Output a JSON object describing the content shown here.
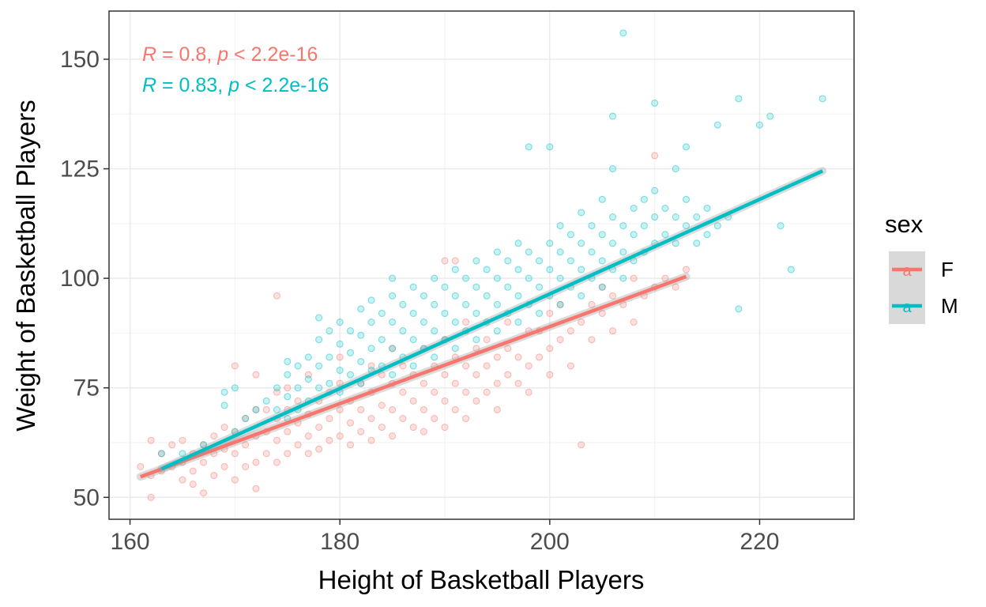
{
  "chart_data": {
    "type": "scatter",
    "title": "",
    "xlabel": "Height of Basketball Players",
    "ylabel": "Weight of Basketball Players",
    "xlim": [
      158,
      229
    ],
    "ylim": [
      45,
      161
    ],
    "xticks": [
      160,
      180,
      200,
      220
    ],
    "yticks": [
      50,
      75,
      100,
      125,
      150
    ],
    "grid": true,
    "legend": {
      "title": "sex",
      "placement": "right",
      "key_glyph": "a",
      "entries": [
        {
          "label": "F",
          "color": "#F8766D"
        },
        {
          "label": "M",
          "color": "#00BFC4"
        }
      ]
    },
    "annotations": [
      {
        "r_symbol": "R",
        "r_text": " = 0.8, ",
        "p_symbol": "p",
        "p_text": " < 2.2e-16",
        "color": "#F8766D"
      },
      {
        "r_symbol": "R",
        "r_text": " = 0.83, ",
        "p_symbol": "p",
        "p_text": " < 2.2e-16",
        "color": "#00BFC4"
      }
    ],
    "series": [
      {
        "name": "F",
        "color": "#F8766D",
        "trend": {
          "x": [
            161,
            213
          ],
          "y": [
            54.7,
            100.4
          ]
        },
        "points": [
          [
            161,
            57
          ],
          [
            162,
            50
          ],
          [
            162,
            55
          ],
          [
            162,
            63
          ],
          [
            163,
            56
          ],
          [
            163,
            60
          ],
          [
            164,
            57
          ],
          [
            164,
            62
          ],
          [
            165,
            54
          ],
          [
            165,
            58
          ],
          [
            165,
            63
          ],
          [
            166,
            53
          ],
          [
            166,
            56
          ],
          [
            166,
            60
          ],
          [
            167,
            51
          ],
          [
            167,
            58
          ],
          [
            167,
            62
          ],
          [
            168,
            55
          ],
          [
            168,
            60
          ],
          [
            168,
            64
          ],
          [
            169,
            57
          ],
          [
            169,
            61
          ],
          [
            169,
            66
          ],
          [
            170,
            54
          ],
          [
            170,
            60
          ],
          [
            170,
            65
          ],
          [
            170,
            80
          ],
          [
            171,
            57
          ],
          [
            171,
            62
          ],
          [
            171,
            68
          ],
          [
            172,
            52
          ],
          [
            172,
            58
          ],
          [
            172,
            64
          ],
          [
            172,
            70
          ],
          [
            172,
            78
          ],
          [
            173,
            60
          ],
          [
            173,
            65
          ],
          [
            173,
            70
          ],
          [
            174,
            58
          ],
          [
            174,
            63
          ],
          [
            174,
            68
          ],
          [
            174,
            74
          ],
          [
            174,
            96
          ],
          [
            175,
            60
          ],
          [
            175,
            65
          ],
          [
            175,
            70
          ],
          [
            175,
            75
          ],
          [
            176,
            62
          ],
          [
            176,
            67
          ],
          [
            176,
            72
          ],
          [
            177,
            60
          ],
          [
            177,
            64
          ],
          [
            177,
            69
          ],
          [
            177,
            78
          ],
          [
            178,
            61
          ],
          [
            178,
            66
          ],
          [
            178,
            72
          ],
          [
            179,
            63
          ],
          [
            179,
            68
          ],
          [
            179,
            74
          ],
          [
            180,
            64
          ],
          [
            180,
            70
          ],
          [
            180,
            76
          ],
          [
            180,
            82
          ],
          [
            181,
            62
          ],
          [
            181,
            67
          ],
          [
            181,
            72
          ],
          [
            182,
            65
          ],
          [
            182,
            70
          ],
          [
            182,
            76
          ],
          [
            183,
            63
          ],
          [
            183,
            68
          ],
          [
            183,
            74
          ],
          [
            183,
            80
          ],
          [
            184,
            66
          ],
          [
            184,
            71
          ],
          [
            184,
            78
          ],
          [
            185,
            64
          ],
          [
            185,
            70
          ],
          [
            185,
            76
          ],
          [
            185,
            84
          ],
          [
            186,
            68
          ],
          [
            186,
            74
          ],
          [
            186,
            80
          ],
          [
            187,
            66
          ],
          [
            187,
            72
          ],
          [
            187,
            78
          ],
          [
            188,
            65
          ],
          [
            188,
            70
          ],
          [
            188,
            76
          ],
          [
            188,
            84
          ],
          [
            189,
            68
          ],
          [
            189,
            74
          ],
          [
            189,
            80
          ],
          [
            190,
            66
          ],
          [
            190,
            72
          ],
          [
            190,
            78
          ],
          [
            190,
            86
          ],
          [
            190,
            104
          ],
          [
            191,
            70
          ],
          [
            191,
            76
          ],
          [
            191,
            82
          ],
          [
            191,
            104
          ],
          [
            192,
            68
          ],
          [
            192,
            74
          ],
          [
            192,
            80
          ],
          [
            192,
            90
          ],
          [
            193,
            72
          ],
          [
            193,
            78
          ],
          [
            193,
            84
          ],
          [
            194,
            74
          ],
          [
            194,
            80
          ],
          [
            194,
            86
          ],
          [
            195,
            70
          ],
          [
            195,
            76
          ],
          [
            195,
            82
          ],
          [
            196,
            78
          ],
          [
            196,
            84
          ],
          [
            196,
            90
          ],
          [
            197,
            76
          ],
          [
            197,
            82
          ],
          [
            198,
            74
          ],
          [
            198,
            80
          ],
          [
            198,
            88
          ],
          [
            199,
            82
          ],
          [
            199,
            88
          ],
          [
            200,
            78
          ],
          [
            200,
            84
          ],
          [
            200,
            92
          ],
          [
            201,
            86
          ],
          [
            201,
            94
          ],
          [
            202,
            80
          ],
          [
            202,
            88
          ],
          [
            203,
            62
          ],
          [
            203,
            90
          ],
          [
            204,
            86
          ],
          [
            204,
            94
          ],
          [
            205,
            92
          ],
          [
            205,
            98
          ],
          [
            206,
            88
          ],
          [
            206,
            96
          ],
          [
            207,
            94
          ],
          [
            208,
            90
          ],
          [
            208,
            100
          ],
          [
            209,
            96
          ],
          [
            210,
            128
          ],
          [
            210,
            98
          ],
          [
            211,
            100
          ],
          [
            212,
            98
          ],
          [
            213,
            102
          ]
        ]
      },
      {
        "name": "M",
        "color": "#00BFC4",
        "trend": {
          "x": [
            163,
            226
          ],
          "y": [
            56.5,
            124.5
          ]
        },
        "points": [
          [
            163,
            60
          ],
          [
            165,
            60
          ],
          [
            167,
            62
          ],
          [
            169,
            74
          ],
          [
            169,
            71
          ],
          [
            170,
            75
          ],
          [
            170,
            65
          ],
          [
            171,
            68
          ],
          [
            172,
            70
          ],
          [
            173,
            72
          ],
          [
            174,
            70
          ],
          [
            174,
            75
          ],
          [
            175,
            68
          ],
          [
            175,
            73
          ],
          [
            175,
            78
          ],
          [
            175,
            81
          ],
          [
            176,
            70
          ],
          [
            176,
            75
          ],
          [
            176,
            80
          ],
          [
            177,
            72
          ],
          [
            177,
            77
          ],
          [
            177,
            82
          ],
          [
            178,
            75
          ],
          [
            178,
            80
          ],
          [
            178,
            86
          ],
          [
            178,
            91
          ],
          [
            179,
            76
          ],
          [
            179,
            82
          ],
          [
            179,
            88
          ],
          [
            180,
            74
          ],
          [
            180,
            79
          ],
          [
            180,
            85
          ],
          [
            180,
            90
          ],
          [
            181,
            78
          ],
          [
            181,
            83
          ],
          [
            181,
            88
          ],
          [
            182,
            76
          ],
          [
            182,
            81
          ],
          [
            182,
            87
          ],
          [
            182,
            93
          ],
          [
            183,
            79
          ],
          [
            183,
            84
          ],
          [
            183,
            90
          ],
          [
            183,
            95
          ],
          [
            184,
            80
          ],
          [
            184,
            86
          ],
          [
            184,
            92
          ],
          [
            185,
            78
          ],
          [
            185,
            84
          ],
          [
            185,
            90
          ],
          [
            185,
            96
          ],
          [
            185,
            100
          ],
          [
            186,
            82
          ],
          [
            186,
            88
          ],
          [
            186,
            94
          ],
          [
            187,
            80
          ],
          [
            187,
            86
          ],
          [
            187,
            92
          ],
          [
            187,
            98
          ],
          [
            188,
            84
          ],
          [
            188,
            90
          ],
          [
            188,
            96
          ],
          [
            189,
            82
          ],
          [
            189,
            88
          ],
          [
            189,
            94
          ],
          [
            189,
            100
          ],
          [
            190,
            86
          ],
          [
            190,
            92
          ],
          [
            190,
            98
          ],
          [
            191,
            84
          ],
          [
            191,
            90
          ],
          [
            191,
            96
          ],
          [
            191,
            102
          ],
          [
            192,
            88
          ],
          [
            192,
            94
          ],
          [
            192,
            100
          ],
          [
            193,
            86
          ],
          [
            193,
            92
          ],
          [
            193,
            98
          ],
          [
            193,
            104
          ],
          [
            194,
            90
          ],
          [
            194,
            96
          ],
          [
            194,
            102
          ],
          [
            195,
            88
          ],
          [
            195,
            94
          ],
          [
            195,
            100
          ],
          [
            195,
            106
          ],
          [
            196,
            92
          ],
          [
            196,
            98
          ],
          [
            196,
            104
          ],
          [
            197,
            90
          ],
          [
            197,
            96
          ],
          [
            197,
            102
          ],
          [
            197,
            108
          ],
          [
            198,
            94
          ],
          [
            198,
            100
          ],
          [
            198,
            106
          ],
          [
            198,
            130
          ],
          [
            199,
            92
          ],
          [
            199,
            98
          ],
          [
            199,
            104
          ],
          [
            200,
            96
          ],
          [
            200,
            102
          ],
          [
            200,
            108
          ],
          [
            200,
            130
          ],
          [
            201,
            94
          ],
          [
            201,
            100
          ],
          [
            201,
            106
          ],
          [
            201,
            112
          ],
          [
            202,
            98
          ],
          [
            202,
            104
          ],
          [
            202,
            110
          ],
          [
            203,
            96
          ],
          [
            203,
            102
          ],
          [
            203,
            108
          ],
          [
            203,
            115
          ],
          [
            204,
            100
          ],
          [
            204,
            106
          ],
          [
            204,
            112
          ],
          [
            205,
            98
          ],
          [
            205,
            104
          ],
          [
            205,
            110
          ],
          [
            205,
            118
          ],
          [
            206,
            102
          ],
          [
            206,
            108
          ],
          [
            206,
            114
          ],
          [
            206,
            125
          ],
          [
            206,
            137
          ],
          [
            207,
            100
          ],
          [
            207,
            106
          ],
          [
            207,
            112
          ],
          [
            207,
            156
          ],
          [
            208,
            104
          ],
          [
            208,
            110
          ],
          [
            208,
            116
          ],
          [
            209,
            106
          ],
          [
            209,
            112
          ],
          [
            209,
            118
          ],
          [
            210,
            108
          ],
          [
            210,
            114
          ],
          [
            210,
            120
          ],
          [
            210,
            140
          ],
          [
            211,
            110
          ],
          [
            211,
            116
          ],
          [
            212,
            108
          ],
          [
            212,
            114
          ],
          [
            212,
            125
          ],
          [
            213,
            112
          ],
          [
            213,
            118
          ],
          [
            213,
            130
          ],
          [
            214,
            108
          ],
          [
            214,
            114
          ],
          [
            215,
            110
          ],
          [
            215,
            116
          ],
          [
            216,
            112
          ],
          [
            216,
            135
          ],
          [
            217,
            114
          ],
          [
            218,
            141
          ],
          [
            218,
            93
          ],
          [
            220,
            135
          ],
          [
            221,
            137
          ],
          [
            222,
            112
          ],
          [
            223,
            102
          ],
          [
            226,
            141
          ]
        ]
      }
    ]
  }
}
